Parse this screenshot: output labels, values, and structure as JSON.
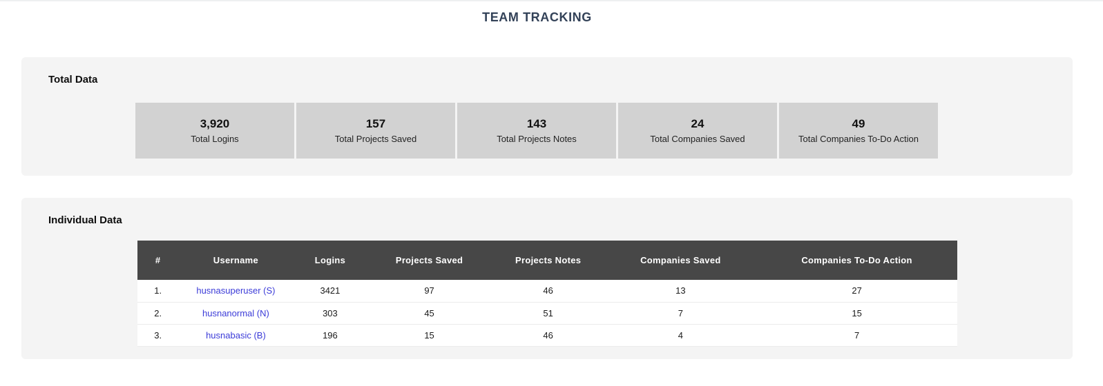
{
  "page": {
    "title": "TEAM TRACKING"
  },
  "totals": {
    "heading": "Total Data",
    "cards": [
      {
        "value": "3,920",
        "label": "Total Logins"
      },
      {
        "value": "157",
        "label": "Total Projects Saved"
      },
      {
        "value": "143",
        "label": "Total Projects Notes"
      },
      {
        "value": "24",
        "label": "Total Companies Saved"
      },
      {
        "value": "49",
        "label": "Total Companies To-Do Action"
      }
    ]
  },
  "individual": {
    "heading": "Individual Data",
    "table": {
      "columns": [
        "#",
        "Username",
        "Logins",
        "Projects Saved",
        "Projects Notes",
        "Companies Saved",
        "Companies To-Do Action"
      ],
      "rows": [
        {
          "index": "1.",
          "username": "husnasuperuser (S)",
          "logins": "3421",
          "projects_saved": "97",
          "projects_notes": "46",
          "companies_saved": "13",
          "companies_todo": "27"
        },
        {
          "index": "2.",
          "username": "husnanormal (N)",
          "logins": "303",
          "projects_saved": "45",
          "projects_notes": "51",
          "companies_saved": "7",
          "companies_todo": "15"
        },
        {
          "index": "3.",
          "username": "husnabasic (B)",
          "logins": "196",
          "projects_saved": "15",
          "projects_notes": "46",
          "companies_saved": "4",
          "companies_todo": "7"
        }
      ]
    }
  },
  "colors": {
    "title_text": "#334258",
    "panel_bg": "#f4f4f4",
    "card_bg": "#d2d2d2",
    "table_header_bg": "#474747",
    "table_header_text": "#ffffff",
    "link_text": "#3b3bd8"
  }
}
